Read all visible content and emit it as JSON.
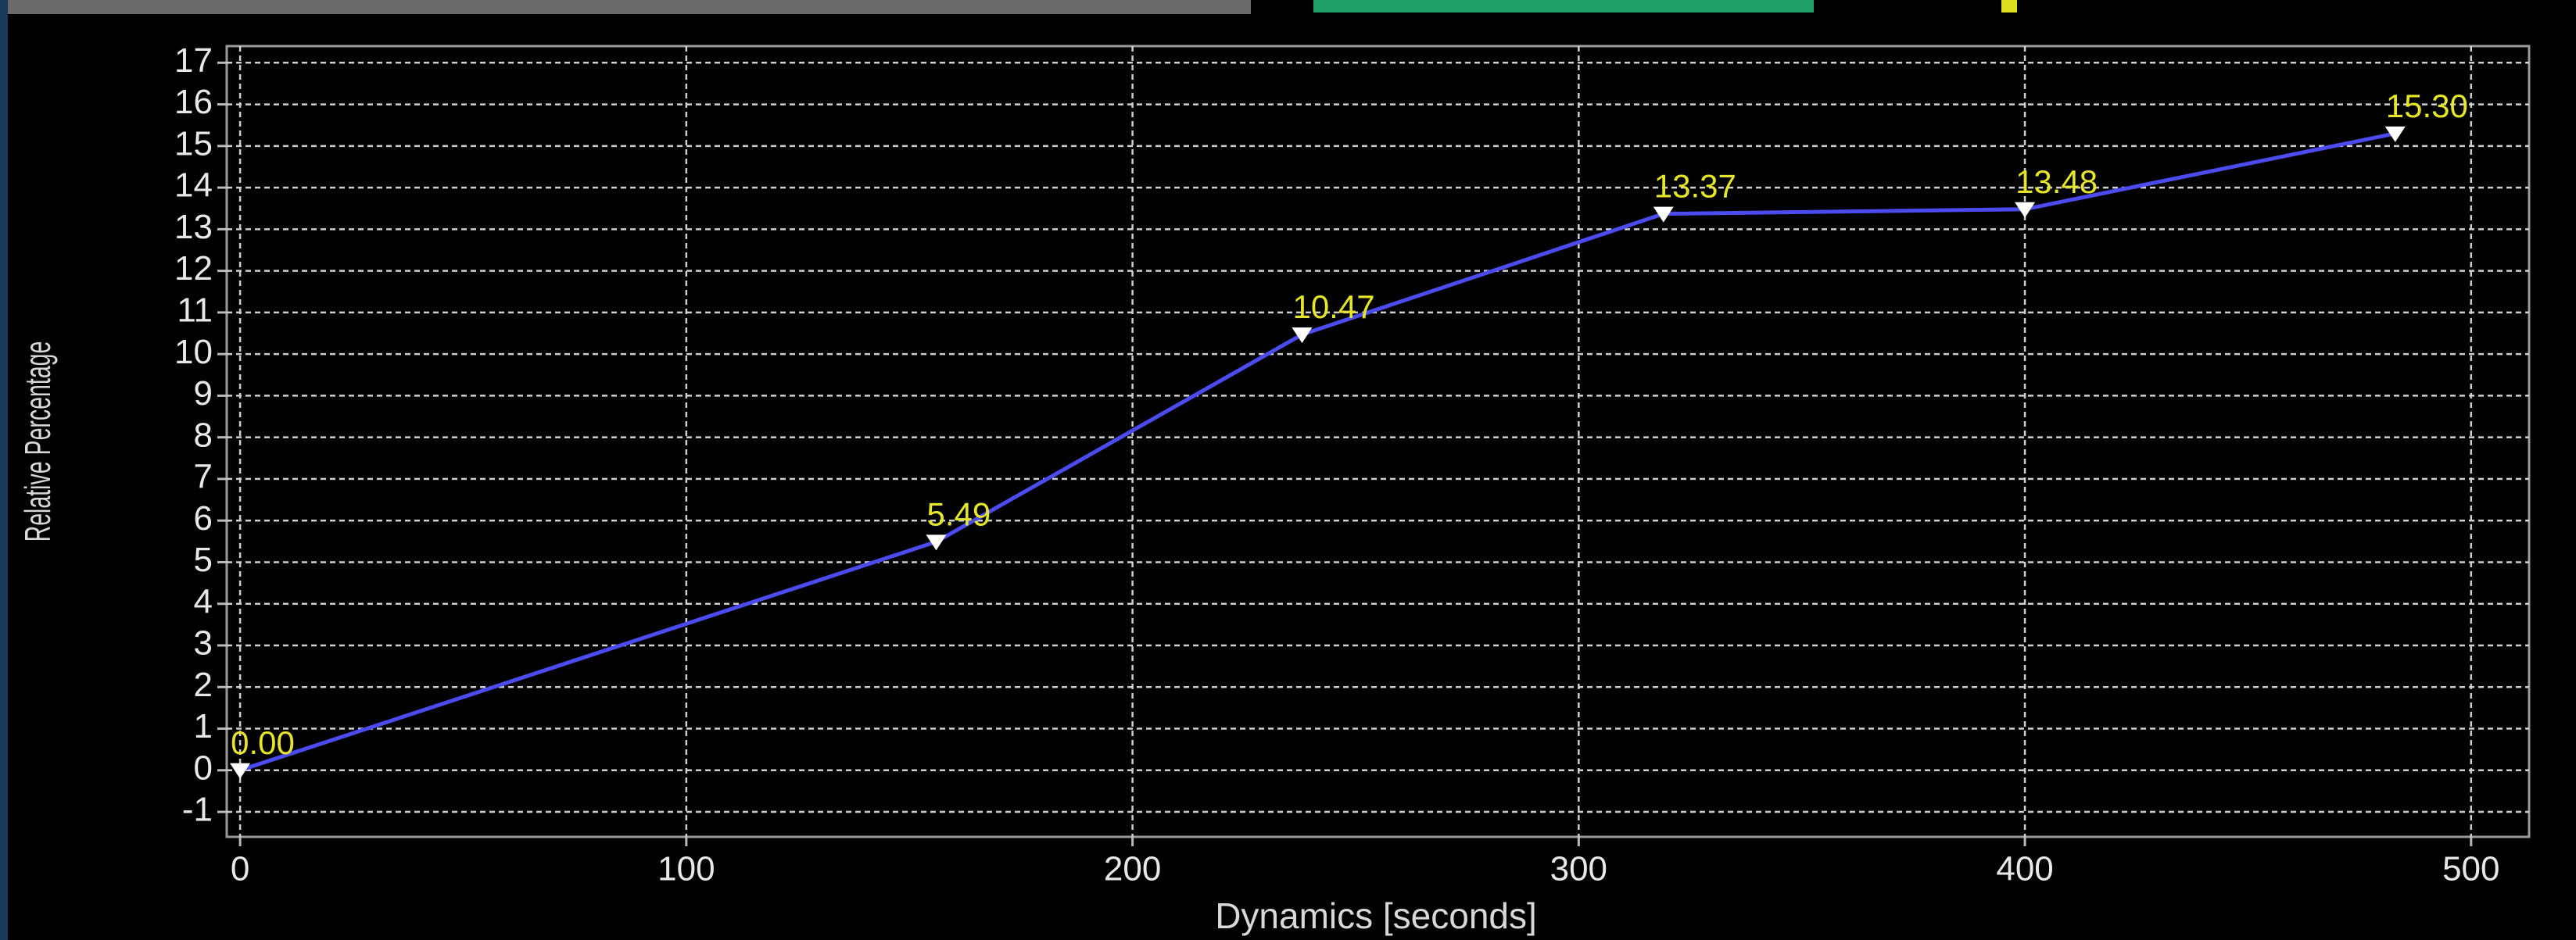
{
  "chart_data": {
    "type": "line",
    "x_label": "Dynamics [seconds]",
    "y_label": "Relative Percentage",
    "x": [
      0,
      156,
      238,
      319,
      400,
      483
    ],
    "series": [
      {
        "color": "#4b4bf0",
        "values": [
          0,
          5.49,
          10.47,
          13.37,
          13.48,
          15.3
        ],
        "value_labels": [
          "0.00",
          "5.49",
          "10.47",
          "13.37",
          "13.48",
          "15.30"
        ]
      }
    ],
    "xlim": [
      -3,
      513
    ],
    "ylim": [
      -1.6,
      17.4
    ],
    "xticks": [
      0,
      100,
      200,
      300,
      400,
      500
    ],
    "yticks": [
      -1,
      0,
      1,
      2,
      3,
      4,
      5,
      6,
      7,
      8,
      9,
      10,
      11,
      12,
      13,
      14,
      15,
      16,
      17
    ],
    "grid": true
  }
}
